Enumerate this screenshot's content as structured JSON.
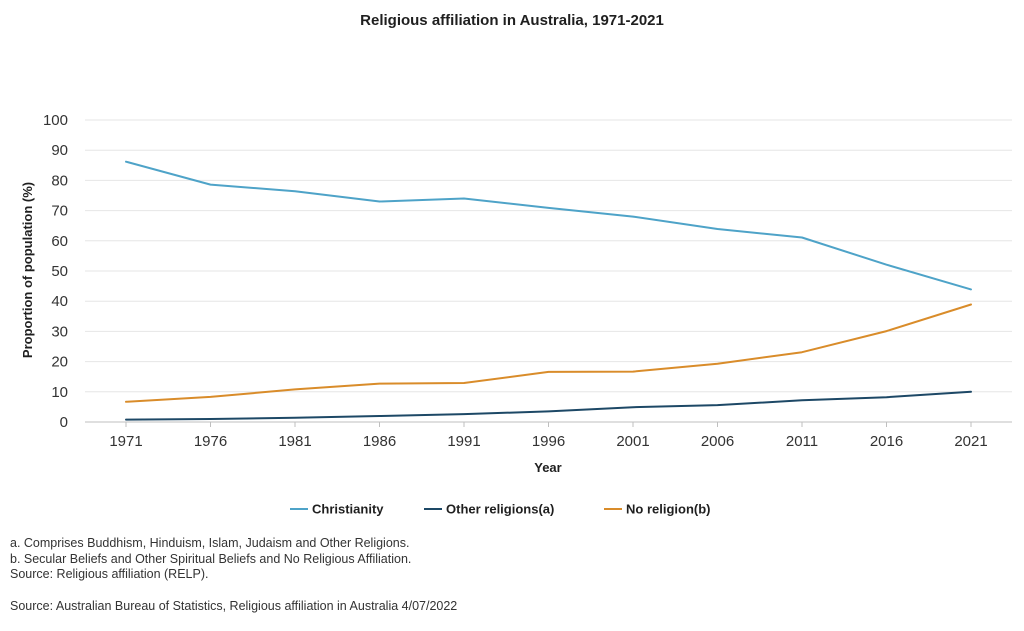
{
  "chart_data": {
    "type": "line",
    "title": "Religious affiliation in Australia, 1971-2021",
    "xlabel": "Year",
    "ylabel": "Proportion of population (%)",
    "x": [
      "1971",
      "1976",
      "1981",
      "1986",
      "1991",
      "1996",
      "2001",
      "2006",
      "2011",
      "2016",
      "2021"
    ],
    "ylim": [
      0,
      100
    ],
    "yticks": [
      0,
      10,
      20,
      30,
      40,
      50,
      60,
      70,
      80,
      90,
      100
    ],
    "grid": true,
    "legend_position": "bottom",
    "series": [
      {
        "name": "Christianity",
        "color": "#4ea3c8",
        "values": [
          86.2,
          78.6,
          76.4,
          73.0,
          74.0,
          70.9,
          68.0,
          63.9,
          61.1,
          52.1,
          43.9
        ]
      },
      {
        "name": "Other religions(a)",
        "color": "#1d4866",
        "values": [
          0.8,
          1.0,
          1.4,
          2.0,
          2.6,
          3.5,
          4.9,
          5.6,
          7.2,
          8.2,
          10.0
        ]
      },
      {
        "name": "No religion(b)",
        "color": "#d98c2a",
        "values": [
          6.7,
          8.3,
          10.8,
          12.7,
          12.9,
          16.6,
          16.7,
          19.3,
          23.1,
          30.1,
          38.9
        ]
      }
    ]
  },
  "footnotes": [
    "a. Comprises Buddhism, Hinduism, Islam, Judaism and Other Religions.",
    "b. Secular Beliefs and Other Spiritual Beliefs and No Religious Affiliation.",
    "Source: Religious affiliation (RELP)."
  ],
  "source": "Source: Australian Bureau of Statistics, Religious affiliation in Australia 4/07/2022"
}
